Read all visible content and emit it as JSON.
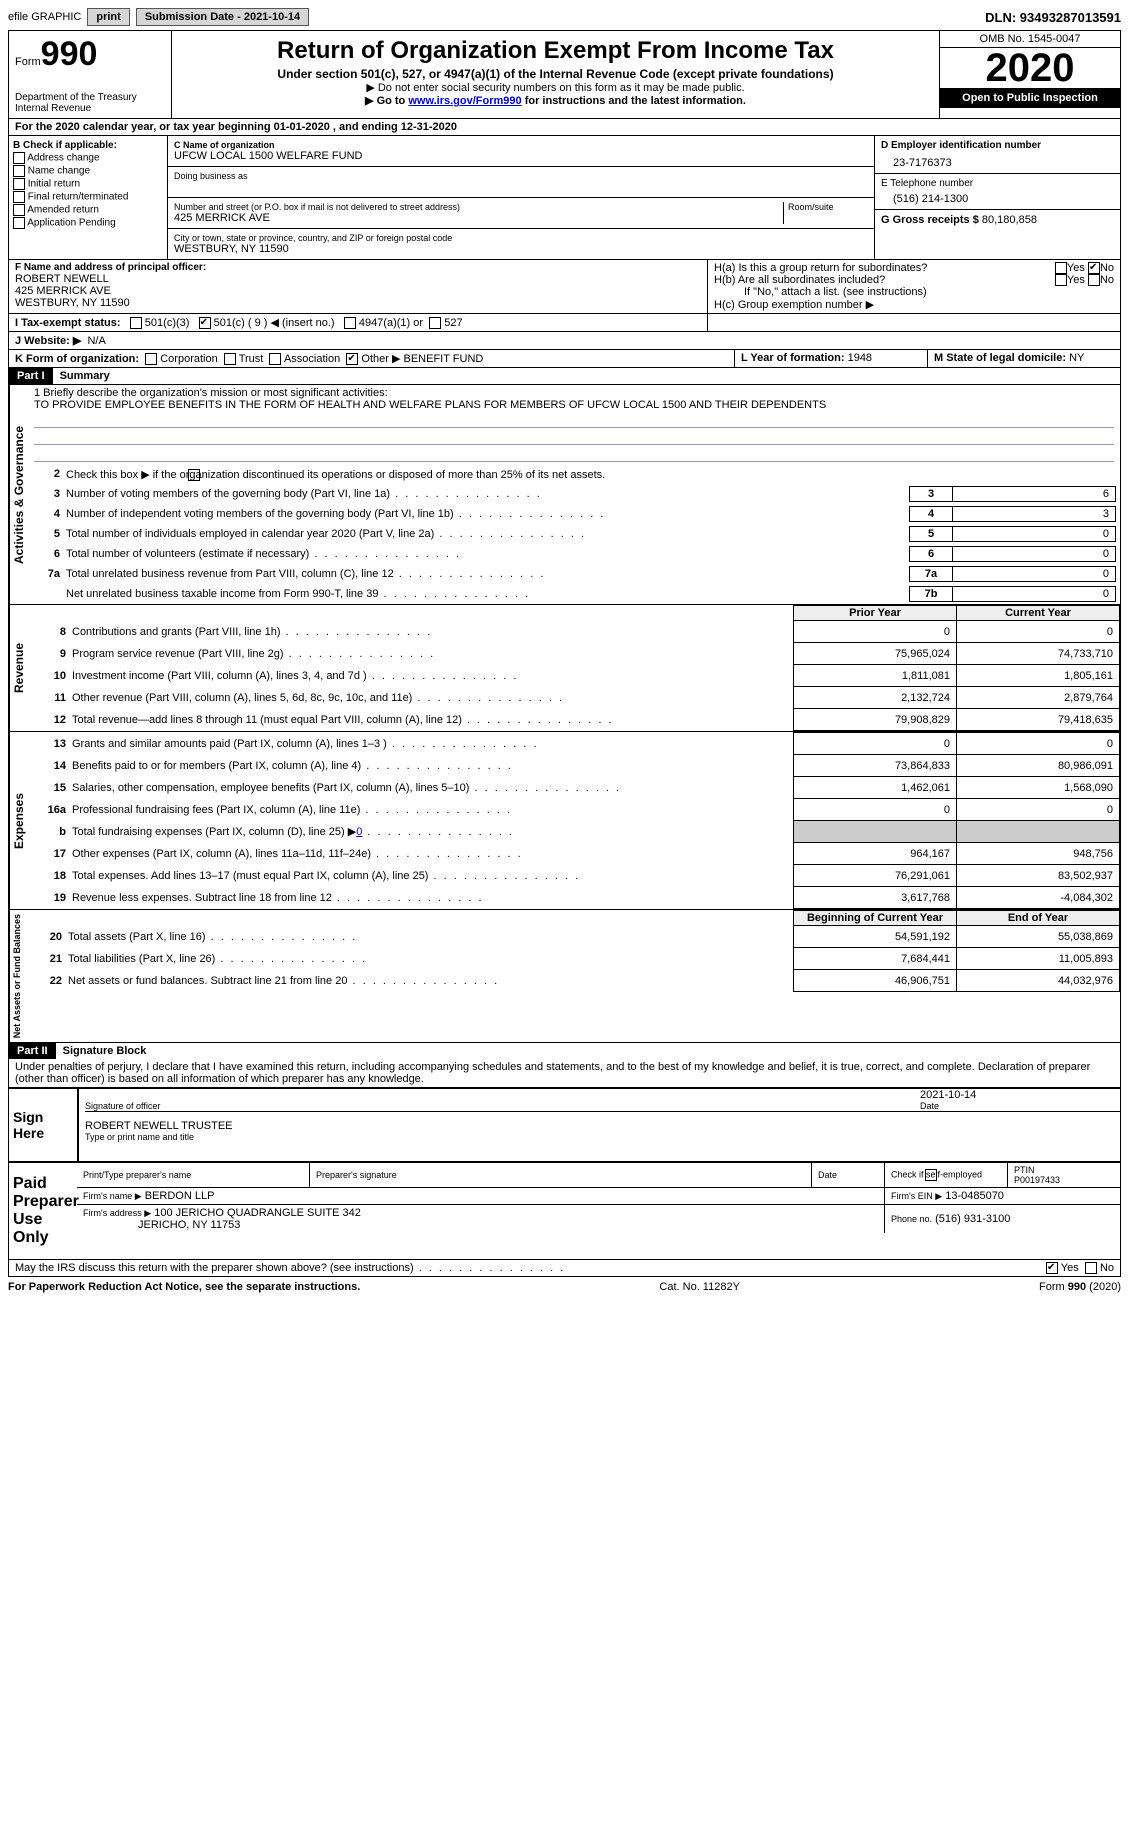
{
  "topbar": {
    "efile": "efile GRAPHIC",
    "print": "print",
    "submission": "Submission Date - 2021-10-14",
    "dln": "DLN: 93493287013591"
  },
  "header": {
    "form_label": "Form",
    "form_num": "990",
    "dept": "Department of the Treasury\nInternal Revenue",
    "title": "Return of Organization Exempt From Income Tax",
    "subtitle": "Under section 501(c), 527, or 4947(a)(1) of the Internal Revenue Code (except private foundations)",
    "note1": "▶ Do not enter social security numbers on this form as it may be made public.",
    "note2_pre": "▶ Go to ",
    "note2_link": "www.irs.gov/Form990",
    "note2_post": " for instructions and the latest information.",
    "omb": "OMB No. 1545-0047",
    "year": "2020",
    "open": "Open to Public Inspection"
  },
  "line_a": "For the 2020 calendar year, or tax year beginning 01-01-2020    , and ending 12-31-2020",
  "box_b": {
    "label": "B Check if applicable:",
    "opts": [
      "Address change",
      "Name change",
      "Initial return",
      "Final return/terminated",
      "Amended return",
      "Application Pending"
    ]
  },
  "box_c": {
    "name_label": "C Name of organization",
    "name": "UFCW LOCAL 1500 WELFARE FUND",
    "dba_label": "Doing business as",
    "addr_label": "Number and street (or P.O. box if mail is not delivered to street address)",
    "room_label": "Room/suite",
    "addr": "425 MERRICK AVE",
    "city_label": "City or town, state or province, country, and ZIP or foreign postal code",
    "city": "WESTBURY, NY  11590"
  },
  "box_d": {
    "label": "D Employer identification number",
    "val": "23-7176373"
  },
  "box_e": {
    "label": "E Telephone number",
    "val": "(516) 214-1300"
  },
  "box_g": {
    "label": "G Gross receipts $",
    "val": "80,180,858"
  },
  "box_f": {
    "label": "F  Name and address of principal officer:",
    "l1": "ROBERT NEWELL",
    "l2": "425 MERRICK AVE",
    "l3": "WESTBURY, NY  11590"
  },
  "box_h": {
    "a": "H(a)  Is this a group return for subordinates?",
    "b": "H(b)  Are all subordinates included?",
    "note": "If \"No,\" attach a list. (see instructions)",
    "c": "H(c)  Group exemption number ▶",
    "yes": "Yes",
    "no": "No"
  },
  "box_i": {
    "label": "I   Tax-exempt status:",
    "o1": "501(c)(3)",
    "o2": "501(c) ( 9 ) ◀ (insert no.)",
    "o3": "4947(a)(1) or",
    "o4": "527"
  },
  "box_j": {
    "label": "J   Website: ▶",
    "val": "N/A"
  },
  "box_k": {
    "label": "K Form of organization:",
    "opts": [
      "Corporation",
      "Trust",
      "Association"
    ],
    "other": "Other ▶",
    "other_val": "BENEFIT FUND"
  },
  "box_l": {
    "label": "L Year of formation:",
    "val": "1948"
  },
  "box_m": {
    "label": "M State of legal domicile:",
    "val": "NY"
  },
  "part1": {
    "tag": "Part I",
    "title": "Summary",
    "mission_label": "1  Briefly describe the organization's mission or most significant activities:",
    "mission": "TO PROVIDE EMPLOYEE BENEFITS IN THE FORM OF HEALTH AND WELFARE PLANS FOR MEMBERS OF UFCW LOCAL 1500 AND THEIR DEPENDENTS",
    "line2": "Check this box ▶        if the organization discontinued its operations or disposed of more than 25% of its net assets.",
    "governance_lines": [
      {
        "n": "3",
        "t": "Number of voting members of the governing body (Part VI, line 1a)",
        "b": "3",
        "v": "6"
      },
      {
        "n": "4",
        "t": "Number of independent voting members of the governing body (Part VI, line 1b)",
        "b": "4",
        "v": "3"
      },
      {
        "n": "5",
        "t": "Total number of individuals employed in calendar year 2020 (Part V, line 2a)",
        "b": "5",
        "v": "0"
      },
      {
        "n": "6",
        "t": "Total number of volunteers (estimate if necessary)",
        "b": "6",
        "v": "0"
      },
      {
        "n": "7a",
        "t": "Total unrelated business revenue from Part VIII, column (C), line 12",
        "b": "7a",
        "v": "0"
      },
      {
        "n": "",
        "t": "Net unrelated business taxable income from Form 990-T, line 39",
        "b": "7b",
        "v": "0"
      }
    ],
    "col_prior": "Prior Year",
    "col_curr": "Current Year",
    "revenue_lines": [
      {
        "n": "8",
        "t": "Contributions and grants (Part VIII, line 1h)",
        "p": "0",
        "c": "0"
      },
      {
        "n": "9",
        "t": "Program service revenue (Part VIII, line 2g)",
        "p": "75,965,024",
        "c": "74,733,710"
      },
      {
        "n": "10",
        "t": "Investment income (Part VIII, column (A), lines 3, 4, and 7d )",
        "p": "1,811,081",
        "c": "1,805,161"
      },
      {
        "n": "11",
        "t": "Other revenue (Part VIII, column (A), lines 5, 6d, 8c, 9c, 10c, and 11e)",
        "p": "2,132,724",
        "c": "2,879,764"
      },
      {
        "n": "12",
        "t": "Total revenue—add lines 8 through 11 (must equal Part VIII, column (A), line 12)",
        "p": "79,908,829",
        "c": "79,418,635"
      }
    ],
    "expense_lines": [
      {
        "n": "13",
        "t": "Grants and similar amounts paid (Part IX, column (A), lines 1–3 )",
        "p": "0",
        "c": "0"
      },
      {
        "n": "14",
        "t": "Benefits paid to or for members (Part IX, column (A), line 4)",
        "p": "73,864,833",
        "c": "80,986,091"
      },
      {
        "n": "15",
        "t": "Salaries, other compensation, employee benefits (Part IX, column (A), lines 5–10)",
        "p": "1,462,061",
        "c": "1,568,090"
      },
      {
        "n": "16a",
        "t": "Professional fundraising fees (Part IX, column (A), line 11e)",
        "p": "0",
        "c": "0"
      },
      {
        "n": "b",
        "t": "Total fundraising expenses (Part IX, column (D), line 25) ▶",
        "p": "",
        "c": "",
        "gray": true,
        "link": "0"
      },
      {
        "n": "17",
        "t": "Other expenses (Part IX, column (A), lines 11a–11d, 11f–24e)",
        "p": "964,167",
        "c": "948,756"
      },
      {
        "n": "18",
        "t": "Total expenses. Add lines 13–17 (must equal Part IX, column (A), line 25)",
        "p": "76,291,061",
        "c": "83,502,937"
      },
      {
        "n": "19",
        "t": "Revenue less expenses. Subtract line 18 from line 12",
        "p": "3,617,768",
        "c": "-4,084,302"
      }
    ],
    "col_beg": "Beginning of Current Year",
    "col_end": "End of Year",
    "net_lines": [
      {
        "n": "20",
        "t": "Total assets (Part X, line 16)",
        "p": "54,591,192",
        "c": "55,038,869"
      },
      {
        "n": "21",
        "t": "Total liabilities (Part X, line 26)",
        "p": "7,684,441",
        "c": "11,005,893"
      },
      {
        "n": "22",
        "t": "Net assets or fund balances. Subtract line 21 from line 20",
        "p": "46,906,751",
        "c": "44,032,976"
      }
    ],
    "vlabels": {
      "gov": "Activities & Governance",
      "rev": "Revenue",
      "exp": "Expenses",
      "net": "Net Assets or Fund Balances"
    }
  },
  "part2": {
    "tag": "Part II",
    "title": "Signature Block",
    "decl": "Under penalties of perjury, I declare that I have examined this return, including accompanying schedules and statements, and to the best of my knowledge and belief, it is true, correct, and complete. Declaration of preparer (other than officer) is based on all information of which preparer has any knowledge.",
    "sign_here": "Sign Here",
    "sig_off": "Signature of officer",
    "sig_date": "Date",
    "sig_date_val": "2021-10-14",
    "name_title": "ROBERT NEWELL  TRUSTEE",
    "type_name": "Type or print name and title",
    "paid": "Paid Preparer Use Only",
    "prep_name_label": "Print/Type preparer's name",
    "prep_sig_label": "Preparer's signature",
    "date_label": "Date",
    "check_if": "Check         if self-employed",
    "ptin_label": "PTIN",
    "ptin": "P00197433",
    "firm_name_label": "Firm's name   ▶",
    "firm_name": "BERDON LLP",
    "firm_ein_label": "Firm's EIN ▶",
    "firm_ein": "13-0485070",
    "firm_addr_label": "Firm's address ▶",
    "firm_addr1": "100 JERICHO QUADRANGLE SUITE 342",
    "firm_addr2": "JERICHO, NY  11753",
    "phone_label": "Phone no.",
    "phone": "(516) 931-3100",
    "discuss": "May the IRS discuss this return with the preparer shown above? (see instructions)"
  },
  "footer": {
    "left": "For Paperwork Reduction Act Notice, see the separate instructions.",
    "mid": "Cat. No. 11282Y",
    "right": "Form 990 (2020)"
  }
}
